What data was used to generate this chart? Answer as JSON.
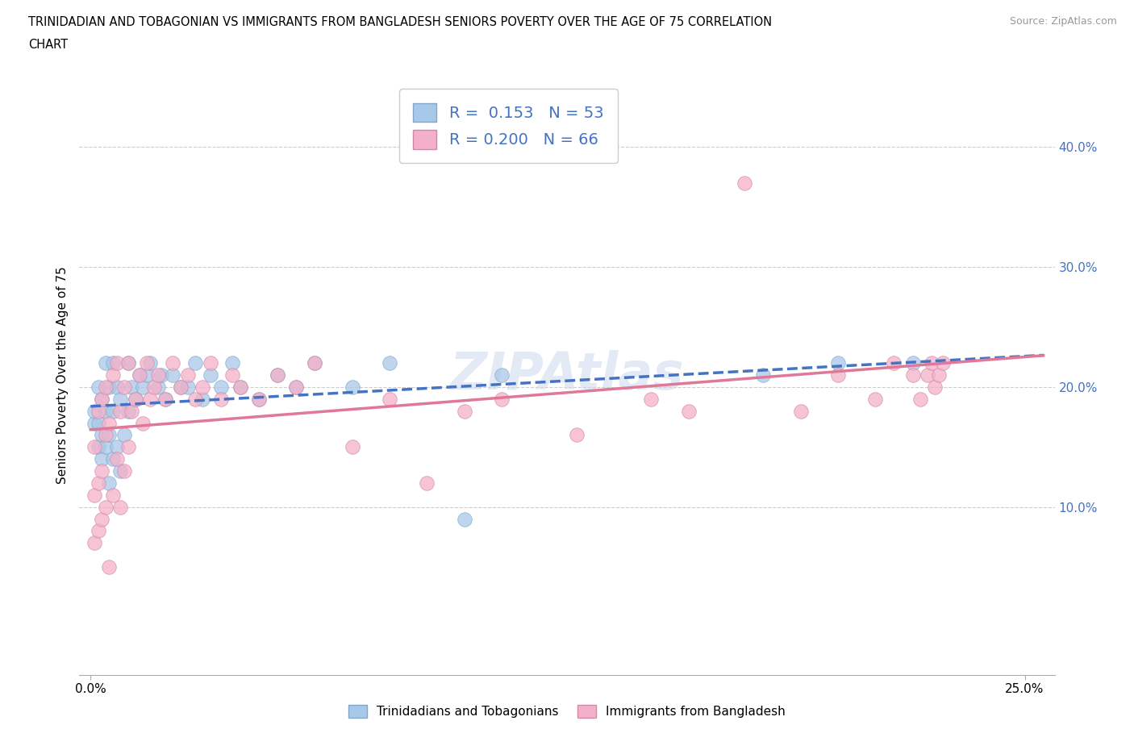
{
  "title_line1": "TRINIDADIAN AND TOBAGONIAN VS IMMIGRANTS FROM BANGLADESH SENIORS POVERTY OVER THE AGE OF 75 CORRELATION",
  "title_line2": "CHART",
  "source": "Source: ZipAtlas.com",
  "watermark": "ZIPAtlas",
  "ylabel": "Seniors Poverty Over the Age of 75",
  "xlim": [
    -0.003,
    0.258
  ],
  "ylim": [
    -0.04,
    0.46
  ],
  "ytick_vals": [
    0.1,
    0.2,
    0.3,
    0.4
  ],
  "ytick_labels": [
    "10.0%",
    "20.0%",
    "30.0%",
    "40.0%"
  ],
  "xtick_vals": [
    0.0,
    0.25
  ],
  "xtick_labels": [
    "0.0%",
    "25.0%"
  ],
  "blue_R": 0.153,
  "blue_N": 53,
  "pink_R": 0.2,
  "pink_N": 66,
  "blue_scatter_color": "#a8c8e8",
  "pink_scatter_color": "#f4b0c8",
  "blue_line_color": "#4472c4",
  "pink_line_color": "#e07898",
  "legend_label_blue": "Trinidadians and Tobagonians",
  "legend_label_pink": "Immigrants from Bangladesh",
  "blue_x": [
    0.001,
    0.001,
    0.002,
    0.002,
    0.002,
    0.003,
    0.003,
    0.003,
    0.004,
    0.004,
    0.004,
    0.005,
    0.005,
    0.005,
    0.006,
    0.006,
    0.006,
    0.007,
    0.007,
    0.008,
    0.008,
    0.009,
    0.01,
    0.01,
    0.011,
    0.012,
    0.013,
    0.014,
    0.015,
    0.016,
    0.018,
    0.019,
    0.02,
    0.022,
    0.024,
    0.026,
    0.028,
    0.03,
    0.032,
    0.035,
    0.038,
    0.04,
    0.045,
    0.05,
    0.055,
    0.06,
    0.07,
    0.08,
    0.1,
    0.11,
    0.18,
    0.2,
    0.22
  ],
  "blue_y": [
    0.17,
    0.18,
    0.15,
    0.17,
    0.2,
    0.14,
    0.16,
    0.19,
    0.15,
    0.18,
    0.22,
    0.12,
    0.16,
    0.2,
    0.14,
    0.18,
    0.22,
    0.15,
    0.2,
    0.13,
    0.19,
    0.16,
    0.18,
    0.22,
    0.2,
    0.19,
    0.21,
    0.2,
    0.21,
    0.22,
    0.2,
    0.21,
    0.19,
    0.21,
    0.2,
    0.2,
    0.22,
    0.19,
    0.21,
    0.2,
    0.22,
    0.2,
    0.19,
    0.21,
    0.2,
    0.22,
    0.2,
    0.22,
    0.09,
    0.21,
    0.21,
    0.22,
    0.22
  ],
  "pink_x": [
    0.001,
    0.001,
    0.001,
    0.002,
    0.002,
    0.002,
    0.003,
    0.003,
    0.003,
    0.004,
    0.004,
    0.004,
    0.005,
    0.005,
    0.006,
    0.006,
    0.007,
    0.007,
    0.008,
    0.008,
    0.009,
    0.009,
    0.01,
    0.01,
    0.011,
    0.012,
    0.013,
    0.014,
    0.015,
    0.016,
    0.017,
    0.018,
    0.02,
    0.022,
    0.024,
    0.026,
    0.028,
    0.03,
    0.032,
    0.035,
    0.038,
    0.04,
    0.045,
    0.05,
    0.055,
    0.06,
    0.07,
    0.08,
    0.09,
    0.1,
    0.11,
    0.13,
    0.15,
    0.16,
    0.175,
    0.19,
    0.2,
    0.21,
    0.215,
    0.22,
    0.222,
    0.224,
    0.225,
    0.226,
    0.227,
    0.228
  ],
  "pink_y": [
    0.07,
    0.11,
    0.15,
    0.08,
    0.12,
    0.18,
    0.09,
    0.13,
    0.19,
    0.1,
    0.16,
    0.2,
    0.05,
    0.17,
    0.11,
    0.21,
    0.14,
    0.22,
    0.1,
    0.18,
    0.13,
    0.2,
    0.15,
    0.22,
    0.18,
    0.19,
    0.21,
    0.17,
    0.22,
    0.19,
    0.2,
    0.21,
    0.19,
    0.22,
    0.2,
    0.21,
    0.19,
    0.2,
    0.22,
    0.19,
    0.21,
    0.2,
    0.19,
    0.21,
    0.2,
    0.22,
    0.15,
    0.19,
    0.12,
    0.18,
    0.19,
    0.16,
    0.19,
    0.18,
    0.37,
    0.18,
    0.21,
    0.19,
    0.22,
    0.21,
    0.19,
    0.21,
    0.22,
    0.2,
    0.21,
    0.22
  ]
}
